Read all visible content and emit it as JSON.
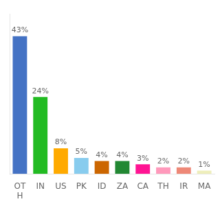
{
  "chart_data": {
    "type": "bar",
    "categories": [
      "OT\nH",
      "IN",
      "US",
      "PK",
      "ID",
      "ZA",
      "CA",
      "TH",
      "IR",
      "MA"
    ],
    "values": [
      43,
      24,
      8,
      5,
      4,
      4,
      3,
      2,
      2,
      1
    ],
    "value_labels": [
      "43%",
      "24%",
      "8%",
      "5%",
      "4%",
      "4%",
      "3%",
      "2%",
      "2%",
      "1%"
    ],
    "colors": [
      "#4472c4",
      "#22bb22",
      "#ffaa00",
      "#88ccee",
      "#cc6600",
      "#228833",
      "#ff1493",
      "#ff99bb",
      "#ee8877",
      "#eeeebb"
    ],
    "ylim": [
      0,
      50
    ],
    "grid": false,
    "data_labels": true,
    "tick_labels": "x"
  }
}
